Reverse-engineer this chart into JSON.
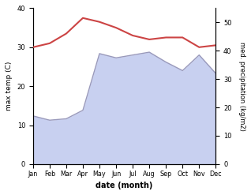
{
  "months": [
    "Jan",
    "Feb",
    "Mar",
    "Apr",
    "May",
    "Jun",
    "Jul",
    "Aug",
    "Sep",
    "Oct",
    "Nov",
    "Dec"
  ],
  "temp": [
    30.0,
    31.0,
    33.5,
    37.5,
    36.5,
    35.0,
    33.0,
    32.0,
    32.5,
    32.5,
    30.0,
    30.5
  ],
  "precip": [
    17.0,
    15.5,
    16.0,
    19.0,
    39.0,
    37.5,
    38.5,
    39.5,
    36.0,
    33.0,
    38.5,
    32.0
  ],
  "temp_color": "#cc4444",
  "precip_color": "#9999bb",
  "precip_fill_color": "#c8d0f0",
  "temp_ylim": [
    0,
    40
  ],
  "precip_ylim": [
    0,
    55
  ],
  "xlabel": "date (month)",
  "ylabel_left": "max temp (C)",
  "ylabel_right": "med. precipitation (kg/m2)",
  "precip_yticks": [
    0,
    10,
    20,
    30,
    40,
    50
  ],
  "temp_yticks": [
    0,
    10,
    20,
    30,
    40
  ]
}
